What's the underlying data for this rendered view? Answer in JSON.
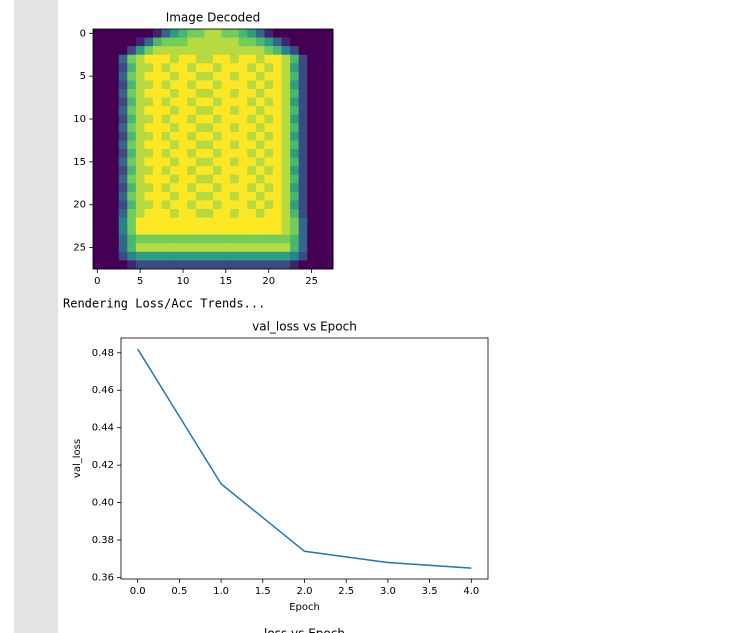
{
  "output_text": "Rendering Loss/Acc Trends...",
  "chart_data": [
    {
      "type": "image",
      "title": "Image Decoded",
      "colormap": "viridis",
      "xlim": [
        -0.5,
        27.5
      ],
      "ylim": [
        27.5,
        -0.5
      ],
      "xticks": [
        0,
        5,
        10,
        15,
        20,
        25
      ],
      "yticks": [
        0,
        5,
        10,
        15,
        20,
        25
      ],
      "values": [
        [
          0,
          0,
          0,
          0,
          0,
          0,
          0,
          0.1,
          0.3,
          0.5,
          0.6,
          0.7,
          0.7,
          0.8,
          0.8,
          0.7,
          0.7,
          0.6,
          0.5,
          0.3,
          0.1,
          0,
          0,
          0,
          0,
          0,
          0,
          0
        ],
        [
          0,
          0,
          0,
          0,
          0,
          0.1,
          0.3,
          0.6,
          0.7,
          0.7,
          0.7,
          0.8,
          0.8,
          0.8,
          0.8,
          0.8,
          0.8,
          0.7,
          0.7,
          0.6,
          0.5,
          0.3,
          0.1,
          0,
          0,
          0,
          0,
          0
        ],
        [
          0,
          0,
          0,
          0,
          0.2,
          0.5,
          0.7,
          0.8,
          0.8,
          0.8,
          0.8,
          0.8,
          0.8,
          0.8,
          0.8,
          0.8,
          0.8,
          0.8,
          0.8,
          0.8,
          0.7,
          0.6,
          0.4,
          0.2,
          0,
          0,
          0,
          0
        ],
        [
          0,
          0,
          0,
          0.3,
          0.7,
          0.8,
          0.9,
          0.9,
          0.9,
          0.8,
          0.9,
          0.9,
          0.8,
          0.8,
          0.9,
          0.9,
          0.8,
          0.9,
          0.9,
          0.8,
          0.9,
          0.9,
          0.8,
          0.6,
          0.2,
          0,
          0,
          0
        ],
        [
          0,
          0,
          0,
          0.2,
          0.6,
          0.8,
          0.8,
          0.9,
          0.8,
          0.9,
          0.9,
          0.8,
          0.9,
          0.9,
          0.8,
          0.9,
          0.9,
          0.9,
          0.8,
          0.9,
          0.8,
          0.9,
          0.8,
          0.5,
          0.2,
          0,
          0,
          0
        ],
        [
          0,
          0,
          0,
          0.3,
          0.7,
          0.8,
          0.9,
          0.9,
          0.9,
          0.8,
          0.9,
          0.9,
          0.8,
          0.8,
          0.9,
          0.9,
          0.8,
          0.9,
          0.9,
          0.8,
          0.9,
          0.9,
          0.8,
          0.6,
          0.2,
          0,
          0,
          0
        ],
        [
          0,
          0,
          0,
          0.2,
          0.6,
          0.8,
          0.8,
          0.9,
          0.8,
          0.9,
          0.9,
          0.8,
          0.9,
          0.9,
          0.8,
          0.9,
          0.9,
          0.9,
          0.8,
          0.9,
          0.8,
          0.9,
          0.8,
          0.5,
          0.2,
          0,
          0,
          0
        ],
        [
          0,
          0,
          0,
          0.3,
          0.7,
          0.8,
          0.9,
          0.9,
          0.9,
          0.8,
          0.9,
          0.9,
          0.8,
          0.8,
          0.9,
          0.9,
          0.8,
          0.9,
          0.9,
          0.8,
          0.9,
          0.9,
          0.8,
          0.6,
          0.2,
          0,
          0,
          0
        ],
        [
          0,
          0,
          0,
          0.2,
          0.6,
          0.8,
          0.8,
          0.9,
          0.8,
          0.9,
          0.9,
          0.8,
          0.9,
          0.9,
          0.8,
          0.9,
          0.9,
          0.9,
          0.8,
          0.9,
          0.8,
          0.9,
          0.8,
          0.5,
          0.2,
          0,
          0,
          0
        ],
        [
          0,
          0,
          0,
          0.3,
          0.7,
          0.8,
          0.9,
          0.9,
          0.9,
          0.8,
          0.9,
          0.9,
          0.8,
          0.8,
          0.9,
          0.9,
          0.8,
          0.9,
          0.9,
          0.8,
          0.9,
          0.9,
          0.8,
          0.6,
          0.2,
          0,
          0,
          0
        ],
        [
          0,
          0,
          0,
          0.2,
          0.6,
          0.8,
          0.8,
          0.9,
          0.8,
          0.9,
          0.9,
          0.8,
          0.9,
          0.9,
          0.8,
          0.9,
          0.9,
          0.9,
          0.8,
          0.9,
          0.8,
          0.9,
          0.8,
          0.5,
          0.2,
          0,
          0,
          0
        ],
        [
          0,
          0,
          0,
          0.3,
          0.7,
          0.8,
          0.9,
          0.9,
          0.9,
          0.8,
          0.9,
          0.9,
          0.8,
          0.8,
          0.9,
          0.9,
          0.8,
          0.9,
          0.9,
          0.8,
          0.9,
          0.9,
          0.8,
          0.6,
          0.2,
          0,
          0,
          0
        ],
        [
          0,
          0,
          0,
          0.2,
          0.6,
          0.8,
          0.8,
          0.9,
          0.8,
          0.9,
          0.9,
          0.8,
          0.9,
          0.9,
          0.8,
          0.9,
          0.9,
          0.9,
          0.8,
          0.9,
          0.8,
          0.9,
          0.8,
          0.5,
          0.2,
          0,
          0,
          0
        ],
        [
          0,
          0,
          0,
          0.3,
          0.7,
          0.8,
          0.9,
          0.9,
          0.9,
          0.8,
          0.9,
          0.9,
          0.8,
          0.8,
          0.9,
          0.9,
          0.8,
          0.9,
          0.9,
          0.8,
          0.9,
          0.9,
          0.8,
          0.6,
          0.2,
          0,
          0,
          0
        ],
        [
          0,
          0,
          0,
          0.2,
          0.6,
          0.8,
          0.8,
          0.9,
          0.8,
          0.9,
          0.9,
          0.8,
          0.9,
          0.9,
          0.8,
          0.9,
          0.9,
          0.9,
          0.8,
          0.9,
          0.8,
          0.9,
          0.8,
          0.5,
          0.2,
          0,
          0,
          0
        ],
        [
          0,
          0,
          0,
          0.3,
          0.7,
          0.8,
          0.9,
          0.9,
          0.9,
          0.8,
          0.9,
          0.9,
          0.8,
          0.8,
          0.9,
          0.9,
          0.8,
          0.9,
          0.9,
          0.8,
          0.9,
          0.9,
          0.8,
          0.6,
          0.2,
          0,
          0,
          0
        ],
        [
          0,
          0,
          0,
          0.2,
          0.6,
          0.8,
          0.8,
          0.9,
          0.8,
          0.9,
          0.9,
          0.8,
          0.9,
          0.9,
          0.8,
          0.9,
          0.9,
          0.9,
          0.8,
          0.9,
          0.8,
          0.9,
          0.8,
          0.5,
          0.2,
          0,
          0,
          0
        ],
        [
          0,
          0,
          0,
          0.3,
          0.7,
          0.8,
          0.9,
          0.9,
          0.9,
          0.8,
          0.9,
          0.9,
          0.8,
          0.8,
          0.9,
          0.9,
          0.8,
          0.9,
          0.9,
          0.8,
          0.9,
          0.9,
          0.8,
          0.6,
          0.2,
          0,
          0,
          0
        ],
        [
          0,
          0,
          0,
          0.2,
          0.6,
          0.8,
          0.8,
          0.9,
          0.8,
          0.9,
          0.9,
          0.8,
          0.9,
          0.9,
          0.8,
          0.9,
          0.9,
          0.9,
          0.8,
          0.9,
          0.8,
          0.9,
          0.8,
          0.5,
          0.2,
          0,
          0,
          0
        ],
        [
          0,
          0,
          0,
          0.3,
          0.7,
          0.8,
          0.9,
          0.9,
          0.9,
          0.8,
          0.9,
          0.9,
          0.8,
          0.8,
          0.9,
          0.9,
          0.8,
          0.9,
          0.9,
          0.8,
          0.9,
          0.9,
          0.8,
          0.6,
          0.2,
          0,
          0,
          0
        ],
        [
          0,
          0,
          0,
          0.2,
          0.6,
          0.8,
          0.8,
          0.9,
          0.8,
          0.9,
          0.9,
          0.8,
          0.9,
          0.9,
          0.8,
          0.9,
          0.9,
          0.9,
          0.8,
          0.9,
          0.8,
          0.9,
          0.8,
          0.5,
          0.2,
          0,
          0,
          0
        ],
        [
          0,
          0,
          0,
          0.3,
          0.7,
          0.8,
          0.9,
          0.9,
          0.9,
          0.8,
          0.9,
          0.9,
          0.8,
          0.8,
          0.9,
          0.9,
          0.8,
          0.9,
          0.9,
          0.8,
          0.9,
          0.9,
          0.8,
          0.6,
          0.2,
          0,
          0,
          0
        ],
        [
          0,
          0,
          0,
          0.4,
          0.7,
          0.9,
          0.9,
          0.9,
          0.9,
          0.9,
          0.9,
          0.9,
          0.9,
          0.9,
          0.9,
          0.9,
          0.9,
          0.9,
          0.9,
          0.9,
          0.9,
          0.9,
          0.8,
          0.7,
          0.3,
          0,
          0,
          0
        ],
        [
          0,
          0,
          0,
          0.4,
          0.7,
          0.9,
          0.9,
          0.9,
          0.9,
          0.9,
          0.9,
          0.9,
          0.9,
          0.9,
          0.9,
          0.9,
          0.9,
          0.9,
          0.9,
          0.9,
          0.9,
          0.9,
          0.8,
          0.7,
          0.3,
          0,
          0,
          0
        ],
        [
          0,
          0,
          0,
          0.3,
          0.6,
          0.7,
          0.7,
          0.7,
          0.7,
          0.7,
          0.7,
          0.7,
          0.7,
          0.7,
          0.7,
          0.7,
          0.7,
          0.7,
          0.7,
          0.7,
          0.7,
          0.7,
          0.7,
          0.6,
          0.3,
          0,
          0,
          0
        ],
        [
          0,
          0,
          0,
          0.3,
          0.6,
          0.8,
          0.8,
          0.8,
          0.8,
          0.8,
          0.8,
          0.8,
          0.8,
          0.8,
          0.8,
          0.8,
          0.8,
          0.8,
          0.8,
          0.8,
          0.8,
          0.8,
          0.8,
          0.6,
          0.3,
          0,
          0,
          0
        ],
        [
          0,
          0,
          0,
          0.2,
          0.4,
          0.5,
          0.5,
          0.5,
          0.5,
          0.5,
          0.5,
          0.5,
          0.5,
          0.5,
          0.5,
          0.5,
          0.5,
          0.5,
          0.5,
          0.5,
          0.5,
          0.5,
          0.5,
          0.4,
          0.2,
          0,
          0,
          0
        ],
        [
          0,
          0,
          0,
          0,
          0.1,
          0.2,
          0.2,
          0.2,
          0.2,
          0.2,
          0.2,
          0.2,
          0.2,
          0.2,
          0.2,
          0.2,
          0.2,
          0.2,
          0.2,
          0.2,
          0.2,
          0.2,
          0.2,
          0.1,
          0,
          0,
          0,
          0
        ]
      ]
    },
    {
      "type": "line",
      "title": "val_loss vs Epoch",
      "xlabel": "Epoch",
      "ylabel": "val_loss",
      "x": [
        0,
        1,
        2,
        3,
        4
      ],
      "values": [
        0.482,
        0.41,
        0.374,
        0.368,
        0.365
      ],
      "color": "#1f77b4",
      "xlim": [
        -0.2,
        4.2
      ],
      "ylim": [
        0.3592,
        0.4879
      ],
      "xticks": [
        {
          "value": 0,
          "label": "0.0"
        },
        0.5,
        {
          "value": 1,
          "label": "1.0"
        },
        1.5,
        {
          "value": 2,
          "label": "2.0"
        },
        2.5,
        {
          "value": 3,
          "label": "3.0"
        },
        3.5,
        {
          "value": 4,
          "label": "4.0"
        }
      ],
      "yticks": [
        0.36,
        0.38,
        {
          "value": 0.4,
          "label": "0.40"
        },
        0.42,
        0.44,
        0.46,
        0.48
      ]
    },
    {
      "type": "line",
      "title": "loss vs Epoch"
    }
  ]
}
